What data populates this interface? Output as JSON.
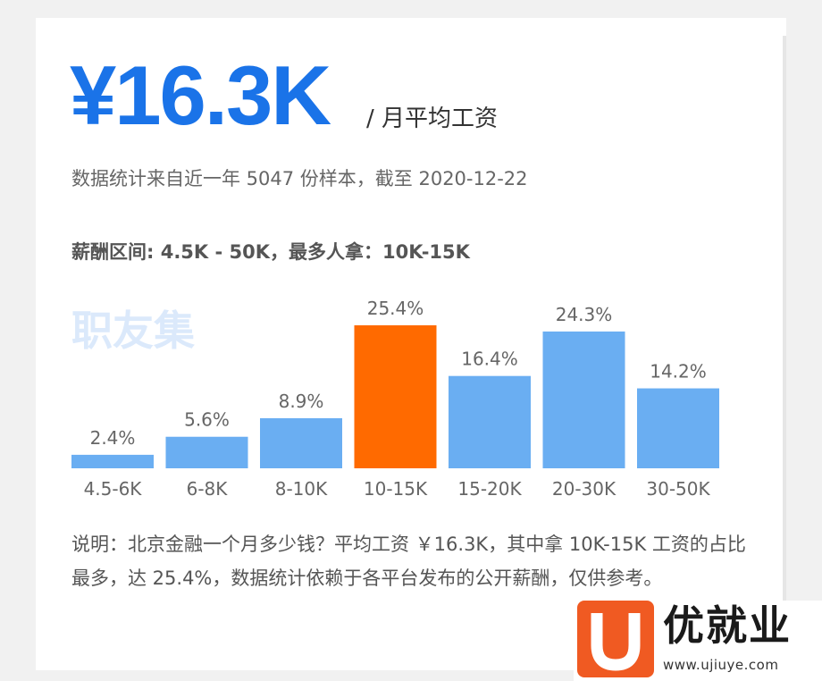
{
  "summary": {
    "salary_value": "¥16.3K",
    "salary_unit": "/ 月平均工资",
    "stat_note": "数据统计来自近一年 5047 份样本，截至 2020-12-22",
    "range_line": "薪酬区间: 4.5K - 50K，最多人拿：10K-15K"
  },
  "watermark": "职友集",
  "description": "说明：北京金融一个月多少钱？平均工资 ￥16.3K，其中拿 10K-15K 工资的占比最多，达 25.4%，数据统计依赖于各平台发布的公开薪酬，仅供参考。",
  "brand": {
    "name": "优就业",
    "url": "www.ujiuye.com"
  },
  "colors": {
    "accent": "#1a73e8",
    "bar": "#6aaef2",
    "highlight": "#ff6a00",
    "logo": "#f05a22"
  },
  "chart_data": {
    "type": "bar",
    "categories": [
      "4.5-6K",
      "6-8K",
      "8-10K",
      "10-15K",
      "15-20K",
      "20-30K",
      "30-50K"
    ],
    "values": [
      2.4,
      5.6,
      8.9,
      25.4,
      16.4,
      24.3,
      14.2
    ],
    "value_labels": [
      "2.4%",
      "5.6%",
      "8.9%",
      "25.4%",
      "16.4%",
      "24.3%",
      "14.2%"
    ],
    "highlight_index": 3,
    "ylim": [
      0,
      25.4
    ],
    "grid": false,
    "axes_visible": false
  }
}
